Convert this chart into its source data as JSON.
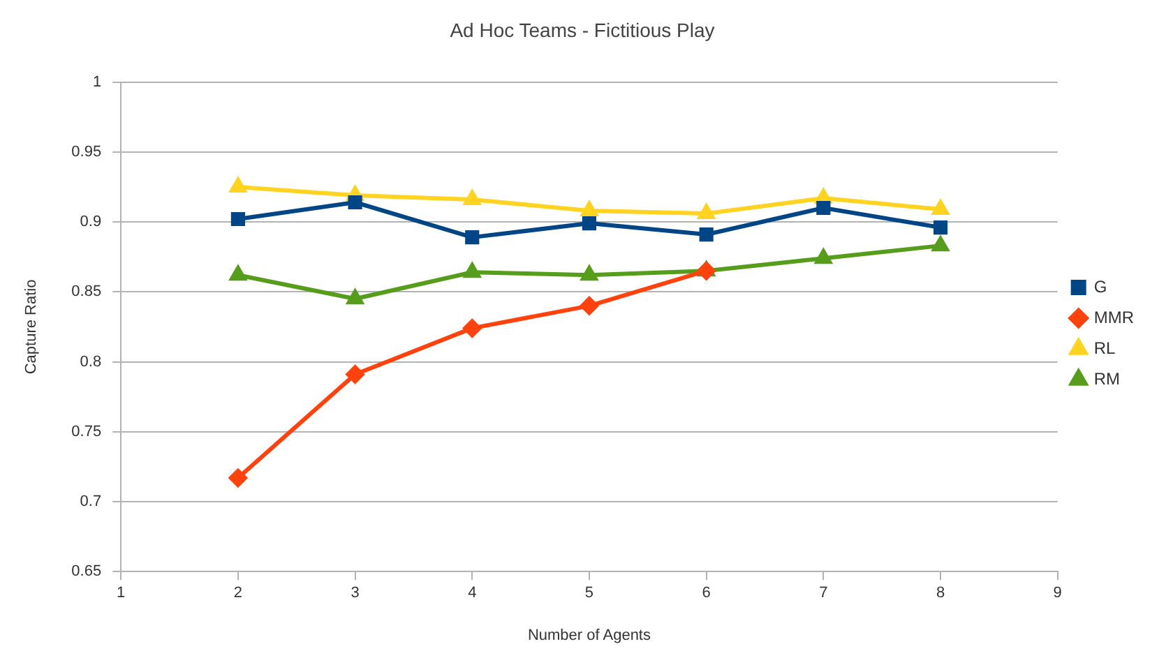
{
  "chart_data": {
    "type": "line",
    "title": "Ad Hoc Teams - Fictitious Play",
    "xlabel": "Number of Agents",
    "ylabel": "Capture Ratio",
    "x": [
      2,
      3,
      4,
      5,
      6,
      7,
      8
    ],
    "series": [
      {
        "name": "G",
        "color": "#004586",
        "marker": "square",
        "values": [
          0.902,
          0.914,
          0.889,
          0.899,
          0.891,
          0.91,
          0.896
        ]
      },
      {
        "name": "MMR",
        "color": "#ff420e",
        "marker": "diamond",
        "values": [
          0.717,
          0.791,
          0.824,
          0.84,
          0.865,
          null,
          null
        ]
      },
      {
        "name": "RL",
        "color": "#ffd320",
        "marker": "triangle",
        "values": [
          0.925,
          0.919,
          0.916,
          0.908,
          0.906,
          0.917,
          0.909
        ]
      },
      {
        "name": "RM",
        "color": "#579d1c",
        "marker": "triangle",
        "values": [
          0.862,
          0.845,
          0.864,
          0.862,
          0.865,
          0.874,
          0.883
        ]
      }
    ],
    "xlim": [
      1,
      9
    ],
    "xticks": [
      1,
      2,
      3,
      4,
      5,
      6,
      7,
      8,
      9
    ],
    "ylim": [
      0.65,
      1
    ],
    "yticks": [
      0.65,
      0.7,
      0.75,
      0.8,
      0.85,
      0.9,
      0.95,
      1
    ],
    "grid": "y",
    "legend": "right",
    "line_style": "solid"
  }
}
